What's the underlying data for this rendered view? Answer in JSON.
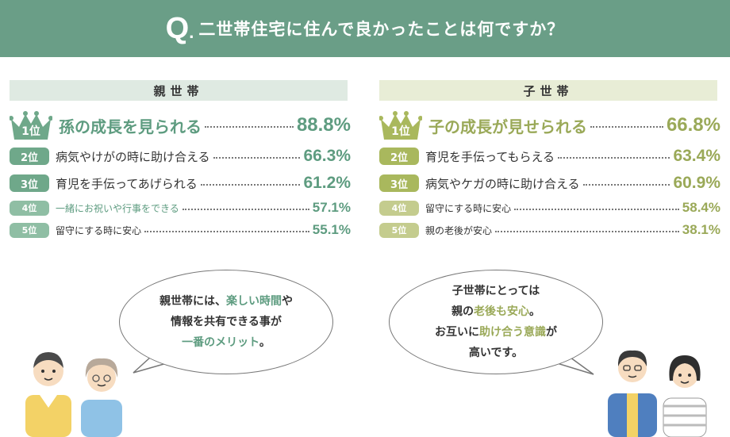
{
  "header": {
    "q": "Q",
    "q_dot": ".",
    "title": "二世帯住宅に住んで良かったことは何ですか？"
  },
  "parents": {
    "heading": "親世帯",
    "items": [
      {
        "rank": "1位",
        "label": "孫の成長を見られる",
        "value": "88.8%"
      },
      {
        "rank": "2位",
        "label": "病気やけがの時に助け合える",
        "value": "66.3%"
      },
      {
        "rank": "3位",
        "label": "育児を手伝ってあげられる",
        "value": "61.2%"
      },
      {
        "rank": "4位",
        "label": "一緒にお祝いや行事をできる",
        "value": "57.1%"
      },
      {
        "rank": "5位",
        "label": "留守にする時に安心",
        "value": "55.1%"
      }
    ],
    "bubble": {
      "line1_a": "親世帯には、",
      "line1_b": "楽しい時間",
      "line1_c": "や",
      "line2": "情報を共有できる事が",
      "line3_a": "一番のメリット",
      "line3_b": "。"
    }
  },
  "children": {
    "heading": "子世帯",
    "items": [
      {
        "rank": "1位",
        "label": "子の成長が見せられる",
        "value": "66.8%"
      },
      {
        "rank": "2位",
        "label": "育児を手伝ってもらえる",
        "value": "63.4%"
      },
      {
        "rank": "3位",
        "label": "病気やケガの時に助け合える",
        "value": "60.9%"
      },
      {
        "rank": "4位",
        "label": "留守にする時に安心",
        "value": "58.4%"
      },
      {
        "rank": "5位",
        "label": "親の老後が安心",
        "value": "38.1%"
      }
    ],
    "bubble": {
      "line1": "子世帯にとっては",
      "line2_a": "親の",
      "line2_b": "老後も安心",
      "line2_c": "。",
      "line3_a": "お互いに",
      "line3_b": "助け合う意識",
      "line3_c": "が",
      "line4": "高いです。"
    }
  },
  "colors": {
    "header": "#6a9e87",
    "parents_accent": "#5e9c80",
    "children_accent": "#9aa958"
  }
}
